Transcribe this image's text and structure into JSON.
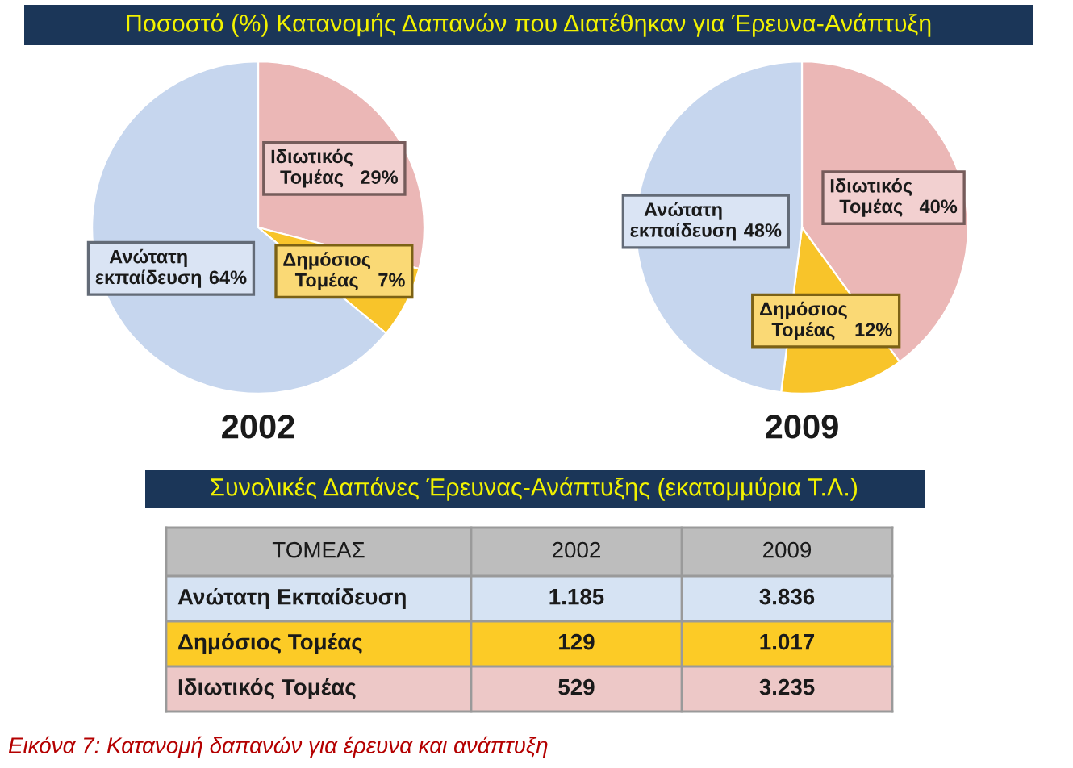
{
  "chart_data": [
    {
      "type": "pie",
      "title": "Ποσοστό (%) Κατανομής Δαπανών που Διατέθηκαν για Έρευνα-Ανάπτυξη",
      "xlabel": "2002",
      "categories": [
        "Ιδιωτικός Τομέας",
        "Δημόσιος Τομέας",
        "Ανώτατη εκπαίδευση"
      ],
      "values": [
        29,
        7,
        64
      ],
      "value_labels": [
        "29%",
        "7%",
        "64%"
      ],
      "colors": [
        "#ebb7b6",
        "#f8c42a",
        "#c6d6ee"
      ]
    },
    {
      "type": "pie",
      "xlabel": "2009",
      "categories": [
        "Ιδιωτικός Τομέας",
        "Δημόσιος Τομέας",
        "Ανώτατη εκπαίδευση"
      ],
      "values": [
        40,
        12,
        48
      ],
      "value_labels": [
        "40%",
        "12%",
        "48%"
      ],
      "colors": [
        "#ebb7b6",
        "#f8c42a",
        "#c6d6ee"
      ]
    },
    {
      "type": "other",
      "title": "Συνολικές Δαπάνες Έρευνας-Ανάπτυξης (εκατομμύρια Τ.Λ.)",
      "xlabel": "ΤΟΜΕΑΣ",
      "categories": [
        "Ανώτατη Εκπαίδευση",
        "Δημόσιος Τομέας",
        "Ιδιωτικός Τομέας"
      ],
      "colors": [
        "#d6e3f3",
        "#fccb26",
        "#edc8c7"
      ],
      "series": [
        {
          "name": "2002",
          "colors": [
            "#d6e3f3",
            "#fccb26",
            "#edc8c7"
          ],
          "values": [
            1185,
            129,
            529
          ],
          "value_labels": [
            "1.185",
            "129",
            "529"
          ]
        },
        {
          "name": "2009",
          "colors": [
            "#d6e3f3",
            "#fccb26",
            "#edc8c7"
          ],
          "values": [
            3836,
            1017,
            3235
          ],
          "value_labels": [
            "3.836",
            "1.017",
            "3.235"
          ]
        }
      ],
      "annotations": [
        "Εικόνα 7: Κατανομή δαπανών για έρευνα και ανάπτυξη"
      ]
    }
  ]
}
